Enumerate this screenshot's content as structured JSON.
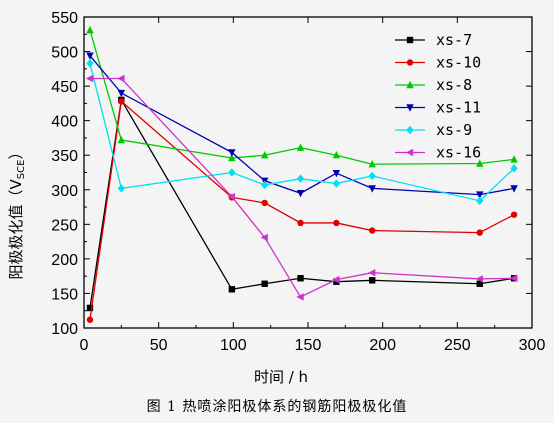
{
  "caption": "图 1    热喷涂阳极体系的钢筋阳极极化值",
  "chart_data": {
    "type": "line",
    "xlabel": "时间 / h",
    "ylabel": "阳极极化值（V",
    "ylabel_sub": "SCE",
    "ylabel_end": "）",
    "xlim": [
      0,
      300
    ],
    "ylim": [
      100,
      550
    ],
    "xticks": [
      0,
      50,
      100,
      150,
      200,
      250,
      300
    ],
    "yticks": [
      100,
      150,
      200,
      250,
      300,
      350,
      400,
      450,
      500,
      550
    ],
    "grid": false,
    "legend_position": "top-right",
    "series": [
      {
        "name": "xs-7",
        "color": "#000000",
        "marker": "square",
        "x": [
          4,
          25,
          99,
          121,
          145,
          169,
          193,
          265,
          288
        ],
        "y": [
          129,
          430,
          156,
          164,
          172,
          167,
          169,
          164,
          172
        ]
      },
      {
        "name": "xs-10",
        "color": "#e00000",
        "marker": "circle",
        "x": [
          4,
          25,
          99,
          121,
          145,
          169,
          193,
          265,
          288
        ],
        "y": [
          112,
          428,
          289,
          281,
          252,
          252,
          241,
          238,
          264
        ]
      },
      {
        "name": "xs-8",
        "color": "#00c800",
        "marker": "triangle-up",
        "x": [
          4,
          25,
          99,
          121,
          145,
          169,
          193,
          265,
          288
        ],
        "y": [
          531,
          372,
          346,
          350,
          361,
          350,
          337,
          338,
          344
        ]
      },
      {
        "name": "xs-11",
        "color": "#0000b0",
        "marker": "triangle-down",
        "x": [
          4,
          25,
          99,
          121,
          145,
          169,
          193,
          265,
          288
        ],
        "y": [
          494,
          440,
          354,
          313,
          295,
          324,
          302,
          293,
          302
        ]
      },
      {
        "name": "xs-9",
        "color": "#00e0f0",
        "marker": "diamond",
        "x": [
          4,
          25,
          99,
          121,
          145,
          169,
          193,
          265,
          288
        ],
        "y": [
          483,
          302,
          325,
          307,
          316,
          309,
          320,
          284,
          331
        ]
      },
      {
        "name": "xs-16",
        "color": "#cc33cc",
        "marker": "triangle-left",
        "x": [
          4,
          25,
          99,
          121,
          145,
          169,
          193,
          265,
          288
        ],
        "y": [
          461,
          461,
          290,
          231,
          145,
          170,
          180,
          171,
          172
        ]
      }
    ]
  }
}
